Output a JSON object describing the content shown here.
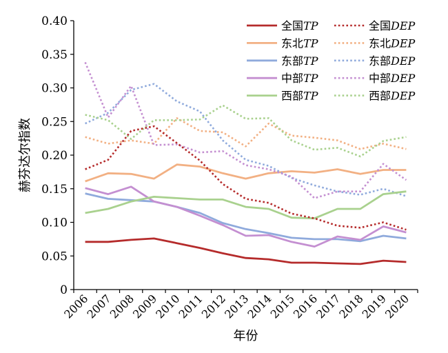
{
  "chart_data": {
    "type": "line",
    "xlabel": "年份",
    "ylabel": "赫芬达尔指数",
    "ylim": [
      0,
      0.4
    ],
    "yticks": [
      0,
      0.05,
      0.1,
      0.15,
      0.2,
      0.25,
      0.3,
      0.35,
      0.4
    ],
    "ytick_labels": [
      "0",
      "0.05",
      "0.10",
      "0.15",
      "0.20",
      "0.25",
      "0.30",
      "0.35",
      "0.40"
    ],
    "categories": [
      "2006",
      "2007",
      "2008",
      "2009",
      "2010",
      "2011",
      "2012",
      "2013",
      "2014",
      "2015",
      "2016",
      "2017",
      "2018",
      "2019",
      "2020"
    ],
    "grid": false,
    "legend_position": "top-right",
    "series": [
      {
        "name": "全国TP",
        "prefix": "全国",
        "suffix": "TP",
        "style": "solid",
        "color": "#b52b2b",
        "values": [
          0.071,
          0.071,
          0.074,
          0.076,
          0.069,
          0.062,
          0.054,
          0.047,
          0.045,
          0.04,
          0.04,
          0.039,
          0.038,
          0.043,
          0.041
        ]
      },
      {
        "name": "全国DEP",
        "prefix": "全国",
        "suffix": "DEP",
        "style": "dotted",
        "color": "#b52b2b",
        "values": [
          0.179,
          0.193,
          0.236,
          0.243,
          0.218,
          0.192,
          0.157,
          0.135,
          0.129,
          0.113,
          0.106,
          0.095,
          0.092,
          0.1,
          0.089
        ]
      },
      {
        "name": "东北TP",
        "prefix": "东北",
        "suffix": "TP",
        "style": "solid",
        "color": "#f2b083",
        "values": [
          0.161,
          0.173,
          0.172,
          0.165,
          0.186,
          0.183,
          0.173,
          0.165,
          0.173,
          0.176,
          0.174,
          0.179,
          0.172,
          0.178,
          0.178
        ]
      },
      {
        "name": "东北DEP",
        "prefix": "东北",
        "suffix": "DEP",
        "style": "dotted",
        "color": "#f2b083",
        "values": [
          0.227,
          0.217,
          0.222,
          0.217,
          0.255,
          0.236,
          0.234,
          0.213,
          0.247,
          0.229,
          0.226,
          0.222,
          0.209,
          0.217,
          0.209
        ]
      },
      {
        "name": "东部TP",
        "prefix": "东部",
        "suffix": "TP",
        "style": "solid",
        "color": "#8faadc",
        "values": [
          0.143,
          0.135,
          0.133,
          0.131,
          0.123,
          0.114,
          0.099,
          0.09,
          0.084,
          0.077,
          0.075,
          0.075,
          0.072,
          0.08,
          0.076
        ]
      },
      {
        "name": "东部DEP",
        "prefix": "东部",
        "suffix": "DEP",
        "style": "dotted",
        "color": "#8faadc",
        "values": [
          0.247,
          0.263,
          0.297,
          0.306,
          0.28,
          0.265,
          0.222,
          0.193,
          0.184,
          0.166,
          0.155,
          0.146,
          0.141,
          0.15,
          0.139
        ]
      },
      {
        "name": "中部TP",
        "prefix": "中部",
        "suffix": "TP",
        "style": "solid",
        "color": "#c48fd1",
        "values": [
          0.151,
          0.142,
          0.153,
          0.131,
          0.123,
          0.11,
          0.096,
          0.08,
          0.081,
          0.071,
          0.064,
          0.079,
          0.074,
          0.094,
          0.085
        ]
      },
      {
        "name": "中部DEP",
        "prefix": "中部",
        "suffix": "DEP",
        "style": "dotted",
        "color": "#c48fd1",
        "values": [
          0.338,
          0.256,
          0.303,
          0.215,
          0.216,
          0.204,
          0.206,
          0.185,
          0.179,
          0.168,
          0.136,
          0.146,
          0.146,
          0.187,
          0.163
        ]
      },
      {
        "name": "西部TP",
        "prefix": "西部",
        "suffix": "TP",
        "style": "solid",
        "color": "#a9d18e",
        "values": [
          0.114,
          0.12,
          0.131,
          0.138,
          0.136,
          0.134,
          0.134,
          0.123,
          0.12,
          0.107,
          0.106,
          0.12,
          0.12,
          0.142,
          0.146
        ]
      },
      {
        "name": "西部DEP",
        "prefix": "西部",
        "suffix": "DEP",
        "style": "dotted",
        "color": "#a9d18e",
        "values": [
          0.26,
          0.252,
          0.224,
          0.252,
          0.252,
          0.253,
          0.274,
          0.254,
          0.255,
          0.222,
          0.208,
          0.211,
          0.198,
          0.221,
          0.227
        ]
      }
    ]
  }
}
